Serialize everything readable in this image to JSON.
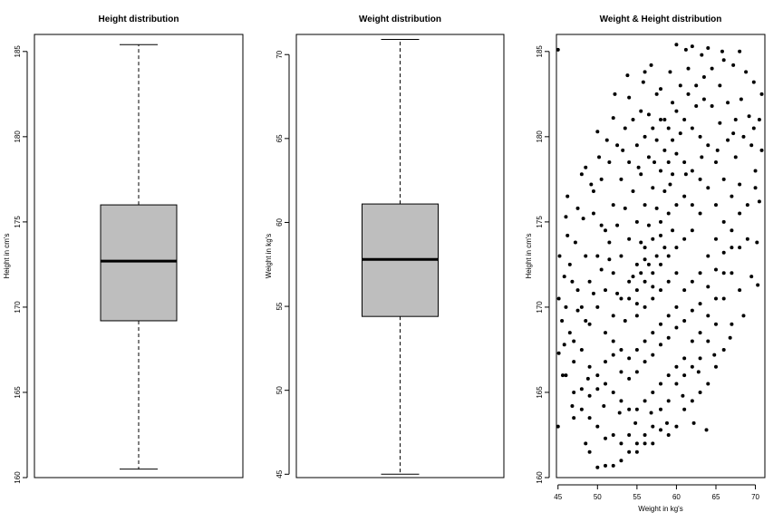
{
  "chart_data": [
    {
      "type": "boxplot",
      "title": "Height distribution",
      "xlabel": "",
      "ylabel": "Height in cm's",
      "ylim": [
        160,
        186
      ],
      "yticks": [
        "160",
        "165",
        "170",
        "175",
        "180",
        "185"
      ],
      "box": {
        "min": 160.5,
        "q1": 169.2,
        "median": 172.7,
        "q3": 176.0,
        "max": 185.4
      },
      "grid": false
    },
    {
      "type": "boxplot",
      "title": "Weight distribution",
      "xlabel": "",
      "ylabel": "Weight in kg's",
      "ylim": [
        44.8,
        71.2
      ],
      "yticks": [
        "45",
        "50",
        "55",
        "60",
        "65",
        "70"
      ],
      "box": {
        "min": 45.0,
        "q1": 54.4,
        "median": 57.8,
        "q3": 61.1,
        "max": 70.9
      },
      "grid": false
    },
    {
      "type": "scatter",
      "title": "Weight & Height distribution",
      "xlabel": "Weight in kg's",
      "ylabel": "Height in cm's",
      "xlim": [
        44.8,
        71.2
      ],
      "ylim": [
        160,
        186
      ],
      "xticks": [
        "45",
        "50",
        "55",
        "60",
        "65",
        "70"
      ],
      "yticks": [
        "160",
        "165",
        "170",
        "175",
        "180",
        "185"
      ],
      "grid": false,
      "point_color": "#000000",
      "points": [
        [
          45.0,
          185.1
        ],
        [
          45.0,
          163.0
        ],
        [
          46.2,
          176.5
        ],
        [
          47.0,
          163.5
        ],
        [
          48.5,
          162.0
        ],
        [
          49.0,
          161.5
        ],
        [
          50.0,
          160.6
        ],
        [
          51.0,
          160.7
        ],
        [
          52.0,
          160.7
        ],
        [
          53.0,
          161.0
        ],
        [
          54.0,
          161.5
        ],
        [
          55.0,
          162.0
        ],
        [
          56.0,
          162.5
        ],
        [
          57.0,
          163.0
        ],
        [
          58.0,
          164.0
        ],
        [
          59.0,
          164.5
        ],
        [
          60.0,
          165.5
        ],
        [
          61.0,
          166.0
        ],
        [
          62.0,
          166.5
        ],
        [
          63.0,
          167.0
        ],
        [
          64.0,
          168.0
        ],
        [
          65.0,
          169.0
        ],
        [
          66.0,
          170.5
        ],
        [
          67.0,
          172.0
        ],
        [
          68.0,
          173.5
        ],
        [
          69.0,
          176.0
        ],
        [
          70.0,
          178.0
        ],
        [
          70.5,
          181.0
        ],
        [
          70.8,
          182.5
        ],
        [
          70.3,
          171.3
        ],
        [
          68.0,
          185.0
        ],
        [
          66.0,
          184.5
        ],
        [
          64.0,
          185.2
        ],
        [
          62.0,
          185.3
        ],
        [
          60.0,
          185.4
        ],
        [
          58.0,
          182.8
        ],
        [
          56.0,
          183.8
        ],
        [
          54.0,
          182.3
        ],
        [
          52.0,
          181.1
        ],
        [
          50.0,
          180.3
        ],
        [
          48.0,
          177.8
        ],
        [
          46.0,
          175.3
        ],
        [
          45.2,
          173.0
        ],
        [
          45.1,
          170.5
        ],
        [
          45.1,
          167.3
        ],
        [
          45.6,
          166.0
        ],
        [
          46.5,
          168.5
        ],
        [
          47.5,
          171.0
        ],
        [
          48.5,
          173.0
        ],
        [
          49.5,
          175.5
        ],
        [
          50.5,
          177.5
        ],
        [
          51.5,
          178.5
        ],
        [
          52.5,
          179.5
        ],
        [
          53.5,
          180.5
        ],
        [
          54.5,
          181.0
        ],
        [
          55.5,
          181.5
        ],
        [
          56.5,
          181.3
        ],
        [
          57.5,
          182.5
        ],
        [
          58.5,
          181.0
        ],
        [
          59.5,
          182.0
        ],
        [
          60.5,
          183.0
        ],
        [
          61.5,
          184.0
        ],
        [
          62.5,
          183.0
        ],
        [
          63.5,
          183.5
        ],
        [
          64.5,
          184.0
        ],
        [
          65.5,
          183.0
        ],
        [
          66.5,
          182.0
        ],
        [
          67.5,
          181.0
        ],
        [
          68.5,
          180.0
        ],
        [
          69.5,
          179.5
        ],
        [
          70.0,
          177.0
        ],
        [
          69.0,
          174.0
        ],
        [
          68.0,
          171.0
        ],
        [
          67.0,
          169.0
        ],
        [
          66.0,
          167.5
        ],
        [
          65.0,
          166.5
        ],
        [
          64.0,
          165.5
        ],
        [
          63.0,
          165.0
        ],
        [
          62.0,
          164.5
        ],
        [
          61.0,
          164.0
        ],
        [
          60.0,
          163.0
        ],
        [
          59.0,
          162.5
        ],
        [
          58.0,
          162.8
        ],
        [
          57.0,
          162.0
        ],
        [
          56.0,
          162.0
        ],
        [
          55.0,
          161.5
        ],
        [
          54.0,
          162.5
        ],
        [
          53.0,
          162.0
        ],
        [
          52.0,
          162.5
        ],
        [
          51.0,
          162.3
        ],
        [
          50.0,
          163.0
        ],
        [
          49.0,
          163.5
        ],
        [
          48.0,
          164.0
        ],
        [
          47.0,
          165.0
        ],
        [
          46.0,
          166.0
        ],
        [
          47.0,
          168.0
        ],
        [
          48.0,
          170.0
        ],
        [
          49.0,
          171.5
        ],
        [
          50.0,
          173.0
        ],
        [
          51.0,
          174.5
        ],
        [
          52.0,
          176.0
        ],
        [
          53.0,
          177.5
        ],
        [
          54.0,
          178.5
        ],
        [
          55.0,
          179.5
        ],
        [
          56.0,
          180.0
        ],
        [
          57.0,
          180.5
        ],
        [
          58.0,
          181.0
        ],
        [
          59.0,
          180.5
        ],
        [
          60.0,
          181.5
        ],
        [
          61.0,
          181.0
        ],
        [
          62.0,
          180.5
        ],
        [
          63.0,
          180.0
        ],
        [
          64.0,
          179.5
        ],
        [
          65.0,
          178.5
        ],
        [
          66.0,
          177.5
        ],
        [
          67.0,
          176.5
        ],
        [
          68.0,
          175.5
        ],
        [
          67.0,
          173.5
        ],
        [
          66.0,
          172.0
        ],
        [
          65.0,
          170.5
        ],
        [
          64.0,
          169.5
        ],
        [
          63.0,
          168.5
        ],
        [
          62.0,
          168.0
        ],
        [
          61.0,
          167.0
        ],
        [
          60.0,
          166.5
        ],
        [
          59.0,
          166.0
        ],
        [
          58.0,
          165.5
        ],
        [
          57.0,
          165.0
        ],
        [
          56.0,
          164.5
        ],
        [
          55.0,
          164.0
        ],
        [
          54.0,
          164.0
        ],
        [
          53.0,
          164.5
        ],
        [
          52.0,
          165.0
        ],
        [
          51.0,
          165.5
        ],
        [
          50.0,
          166.0
        ],
        [
          49.0,
          166.5
        ],
        [
          48.0,
          167.5
        ],
        [
          49.0,
          169.0
        ],
        [
          50.0,
          170.0
        ],
        [
          51.0,
          171.0
        ],
        [
          52.0,
          172.0
        ],
        [
          53.0,
          173.0
        ],
        [
          54.0,
          174.0
        ],
        [
          55.0,
          175.0
        ],
        [
          56.0,
          176.0
        ],
        [
          57.0,
          177.0
        ],
        [
          58.0,
          178.0
        ],
        [
          59.0,
          178.5
        ],
        [
          60.0,
          179.0
        ],
        [
          61.0,
          178.5
        ],
        [
          62.0,
          178.0
        ],
        [
          63.0,
          177.5
        ],
        [
          64.0,
          177.0
        ],
        [
          65.0,
          176.0
        ],
        [
          66.0,
          175.0
        ],
        [
          65.0,
          174.0
        ],
        [
          64.0,
          173.0
        ],
        [
          63.0,
          172.0
        ],
        [
          62.0,
          171.5
        ],
        [
          61.0,
          171.0
        ],
        [
          60.0,
          170.0
        ],
        [
          59.0,
          169.5
        ],
        [
          58.0,
          169.0
        ],
        [
          57.0,
          168.5
        ],
        [
          56.0,
          168.0
        ],
        [
          55.0,
          167.5
        ],
        [
          54.0,
          167.0
        ],
        [
          53.0,
          167.5
        ],
        [
          52.0,
          168.0
        ],
        [
          51.0,
          168.5
        ],
        [
          52.0,
          169.5
        ],
        [
          53.0,
          170.5
        ],
        [
          54.0,
          171.5
        ],
        [
          55.0,
          172.5
        ],
        [
          56.0,
          173.5
        ],
        [
          57.0,
          174.0
        ],
        [
          58.0,
          175.0
        ],
        [
          59.0,
          175.5
        ],
        [
          60.0,
          176.0
        ],
        [
          61.0,
          176.5
        ],
        [
          62.0,
          176.0
        ],
        [
          63.0,
          175.5
        ],
        [
          62.0,
          174.5
        ],
        [
          61.0,
          174.0
        ],
        [
          60.0,
          173.5
        ],
        [
          59.0,
          173.0
        ],
        [
          58.0,
          172.5
        ],
        [
          57.0,
          172.0
        ],
        [
          56.0,
          171.5
        ],
        [
          55.0,
          171.0
        ],
        [
          54.0,
          170.5
        ],
        [
          55.0,
          169.5
        ],
        [
          56.0,
          170.0
        ],
        [
          57.0,
          170.5
        ],
        [
          58.0,
          171.0
        ],
        [
          59.0,
          171.5
        ],
        [
          60.0,
          172.0
        ],
        [
          59.5,
          174.5
        ],
        [
          58.5,
          173.5
        ],
        [
          57.5,
          173.0
        ],
        [
          56.5,
          172.5
        ],
        [
          55.5,
          172.0
        ],
        [
          54.5,
          171.8
        ],
        [
          55.5,
          173.8
        ],
        [
          56.5,
          174.8
        ],
        [
          57.5,
          175.8
        ],
        [
          58.5,
          176.8
        ],
        [
          59.5,
          177.8
        ],
        [
          57.0,
          171.2
        ],
        [
          56.0,
          172.8
        ],
        [
          58.0,
          174.2
        ],
        [
          55.0,
          170.2
        ],
        [
          53.5,
          169.2
        ],
        [
          52.5,
          170.8
        ],
        [
          51.5,
          172.8
        ],
        [
          50.5,
          174.8
        ],
        [
          49.5,
          176.8
        ],
        [
          48.5,
          178.2
        ],
        [
          47.5,
          175.8
        ],
        [
          46.5,
          172.5
        ],
        [
          46.0,
          170.0
        ],
        [
          47.0,
          166.8
        ],
        [
          48.0,
          165.2
        ],
        [
          49.0,
          164.8
        ],
        [
          50.0,
          165.2
        ],
        [
          51.0,
          166.8
        ],
        [
          52.0,
          167.2
        ],
        [
          53.0,
          166.2
        ],
        [
          54.0,
          165.8
        ],
        [
          55.0,
          166.2
        ],
        [
          56.0,
          166.8
        ],
        [
          57.0,
          167.2
        ],
        [
          58.0,
          167.8
        ],
        [
          59.0,
          168.2
        ],
        [
          60.0,
          168.8
        ],
        [
          61.0,
          169.2
        ],
        [
          62.0,
          169.8
        ],
        [
          63.0,
          170.2
        ],
        [
          64.0,
          171.2
        ],
        [
          65.0,
          172.2
        ],
        [
          66.0,
          173.2
        ],
        [
          67.0,
          174.5
        ],
        [
          68.0,
          177.2
        ],
        [
          67.5,
          178.8
        ],
        [
          66.5,
          179.8
        ],
        [
          65.5,
          180.8
        ],
        [
          64.5,
          181.8
        ],
        [
          63.5,
          182.2
        ],
        [
          62.5,
          181.8
        ],
        [
          61.5,
          182.5
        ],
        [
          60.5,
          180.2
        ],
        [
          59.5,
          179.8
        ],
        [
          58.5,
          179.2
        ],
        [
          57.5,
          179.8
        ],
        [
          56.5,
          178.8
        ],
        [
          55.5,
          177.8
        ],
        [
          54.5,
          176.8
        ],
        [
          53.5,
          175.8
        ],
        [
          52.5,
          174.8
        ],
        [
          51.5,
          173.8
        ],
        [
          50.5,
          172.2
        ],
        [
          49.5,
          170.8
        ],
        [
          48.5,
          169.2
        ],
        [
          47.5,
          169.8
        ],
        [
          46.8,
          171.5
        ],
        [
          47.2,
          173.8
        ],
        [
          48.2,
          175.2
        ],
        [
          49.2,
          177.2
        ],
        [
          50.2,
          178.8
        ],
        [
          51.2,
          179.8
        ],
        [
          53.2,
          179.2
        ],
        [
          55.2,
          178.2
        ],
        [
          57.2,
          178.5
        ],
        [
          59.2,
          177.2
        ],
        [
          61.2,
          177.8
        ],
        [
          63.2,
          178.8
        ],
        [
          65.2,
          179.2
        ],
        [
          67.2,
          180.2
        ],
        [
          69.2,
          181.2
        ],
        [
          69.8,
          183.2
        ],
        [
          68.8,
          183.8
        ],
        [
          67.2,
          184.2
        ],
        [
          65.8,
          185.0
        ],
        [
          63.2,
          184.8
        ],
        [
          61.2,
          185.1
        ],
        [
          59.2,
          183.8
        ],
        [
          56.8,
          184.2
        ],
        [
          55.8,
          183.2
        ],
        [
          53.8,
          183.6
        ],
        [
          52.2,
          182.5
        ],
        [
          63.8,
          162.8
        ],
        [
          62.2,
          163.2
        ],
        [
          60.8,
          164.8
        ],
        [
          58.8,
          163.2
        ],
        [
          56.8,
          163.8
        ],
        [
          54.8,
          163.2
        ],
        [
          52.8,
          163.8
        ],
        [
          50.8,
          164.2
        ],
        [
          48.8,
          165.8
        ],
        [
          46.8,
          164.2
        ],
        [
          45.8,
          167.8
        ],
        [
          45.5,
          169.2
        ],
        [
          45.8,
          171.8
        ],
        [
          46.2,
          174.2
        ],
        [
          62.8,
          166.2
        ],
        [
          64.8,
          167.2
        ],
        [
          66.8,
          168.2
        ],
        [
          68.5,
          169.5
        ],
        [
          69.5,
          171.8
        ],
        [
          70.2,
          173.8
        ],
        [
          70.5,
          176.2
        ],
        [
          70.8,
          179.2
        ],
        [
          69.8,
          180.5
        ],
        [
          68.2,
          182.2
        ]
      ]
    }
  ]
}
